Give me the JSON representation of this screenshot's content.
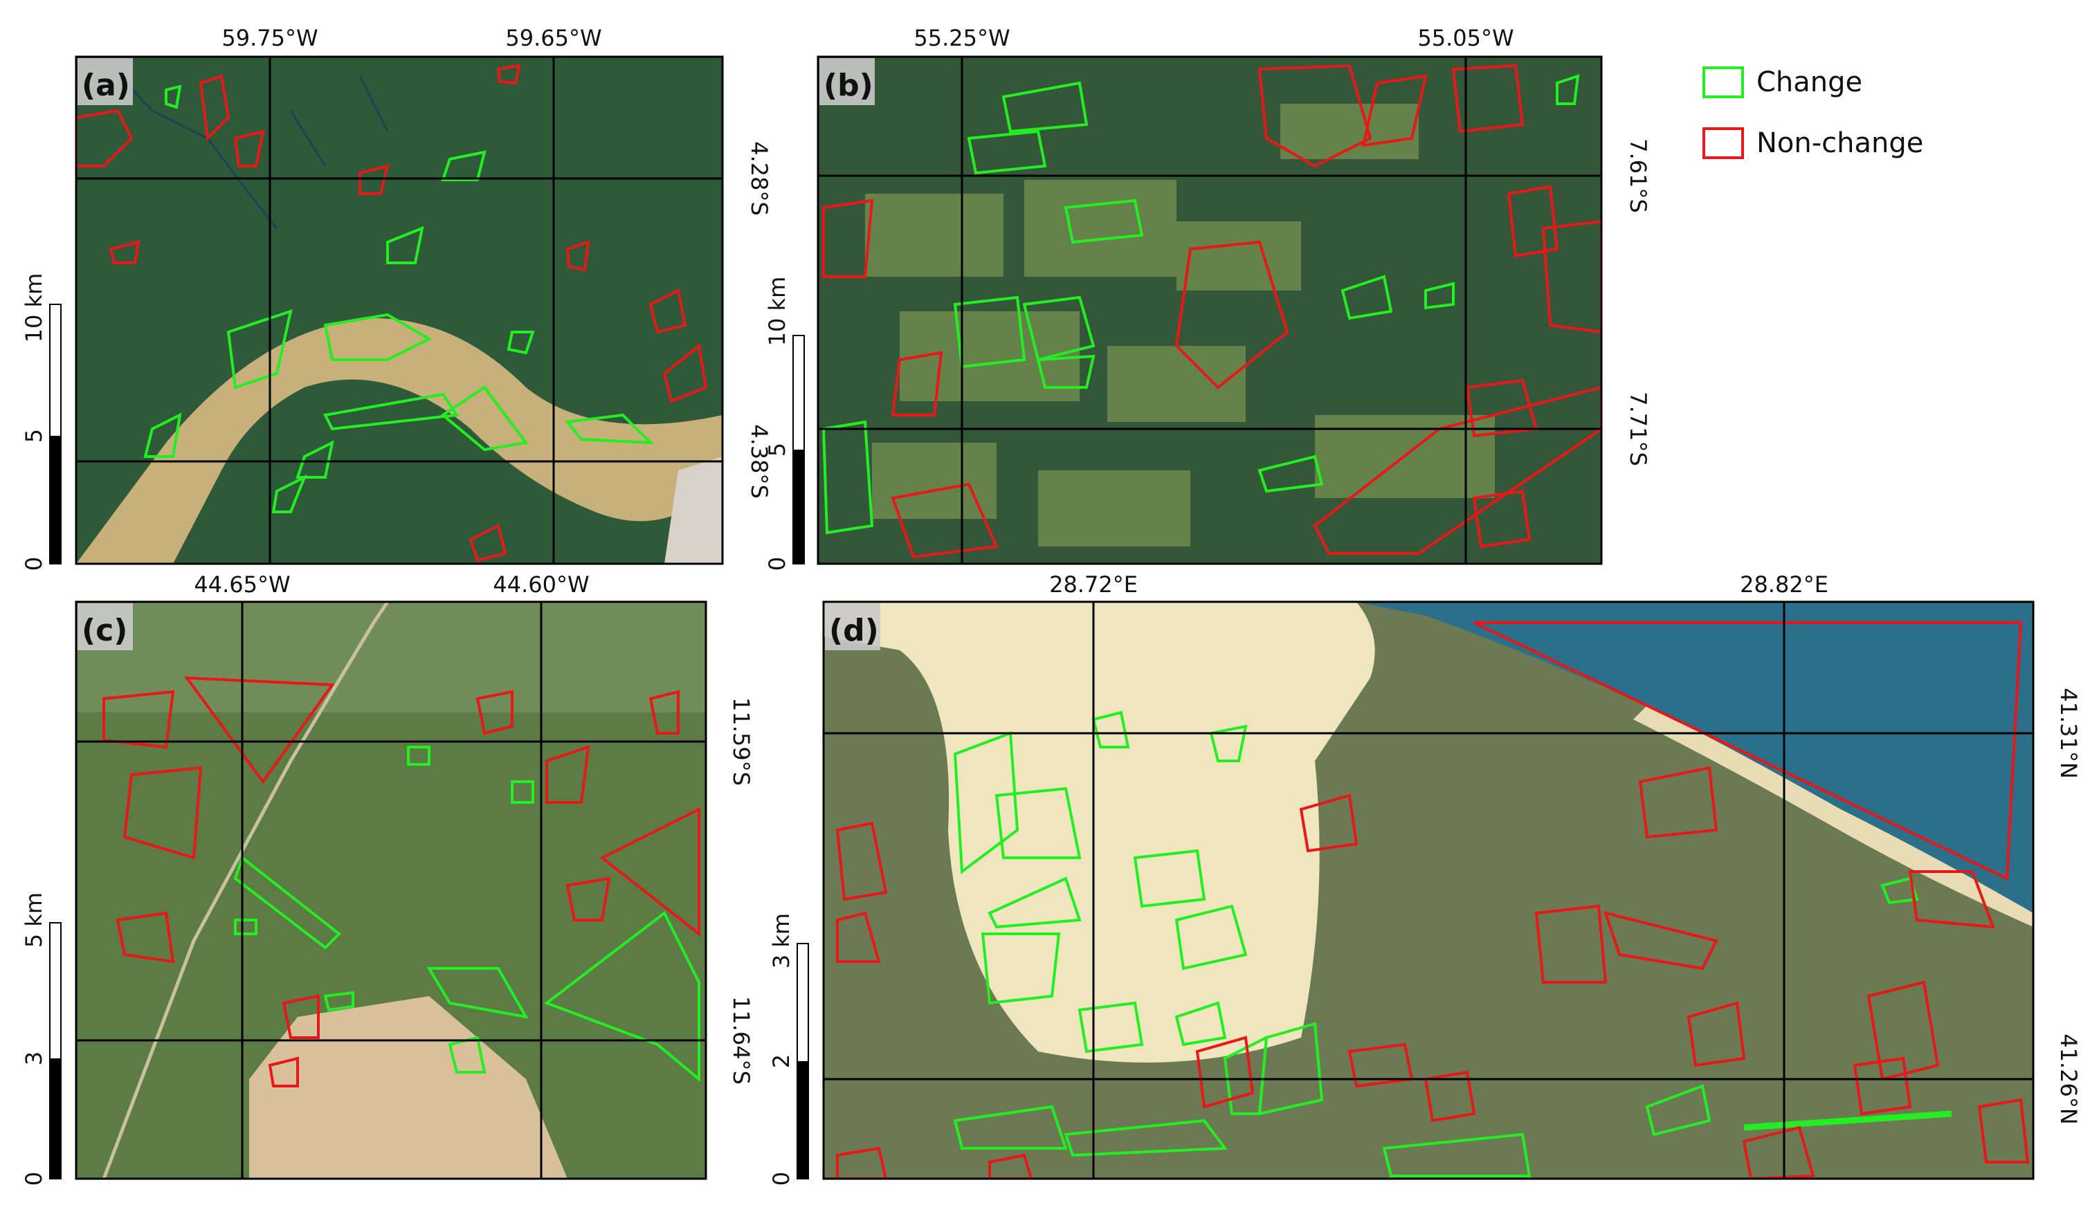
{
  "legend": {
    "change_label": "Change",
    "non_change_label": "Non-change",
    "change_color": "#22ee22",
    "non_change_color": "#e81818"
  },
  "panels": {
    "a": {
      "label": "(a)",
      "lon_labels": [
        "59.75°W",
        "59.65°W"
      ],
      "lat_labels": [
        "4.28°S",
        "4.38°S"
      ],
      "scale": {
        "unit_label": "10 km",
        "mid_label": "5",
        "zero_label": "0"
      }
    },
    "b": {
      "label": "(b)",
      "lon_labels": [
        "55.25°W",
        "55.05°W"
      ],
      "lat_labels": [
        "7.61°S",
        "7.71°S"
      ],
      "scale": {
        "unit_label": "10 km",
        "mid_label": "5",
        "zero_label": "0"
      }
    },
    "c": {
      "label": "(c)",
      "lon_labels": [
        "44.65°W",
        "44.60°W"
      ],
      "lat_labels": [
        "11.59°S",
        "11.64°S"
      ],
      "scale": {
        "unit_label": "5 km",
        "mid_label": "3",
        "zero_label": "0"
      }
    },
    "d": {
      "label": "(d)",
      "lon_labels": [
        "28.72°E",
        "28.82°E"
      ],
      "lat_labels": [
        "41.31°N",
        "41.26°N"
      ],
      "scale": {
        "unit_label": "3 km",
        "mid_label": "2",
        "zero_label": "0"
      }
    }
  },
  "colors": {
    "forest": "#2f5a3a",
    "river": "#c8b07a",
    "pasture": "#6f8a4e",
    "savanna": "#5d7b45",
    "bare_soil": "#d8c09a",
    "mine": "#efe6c0",
    "sea": "#2c6f8a"
  }
}
